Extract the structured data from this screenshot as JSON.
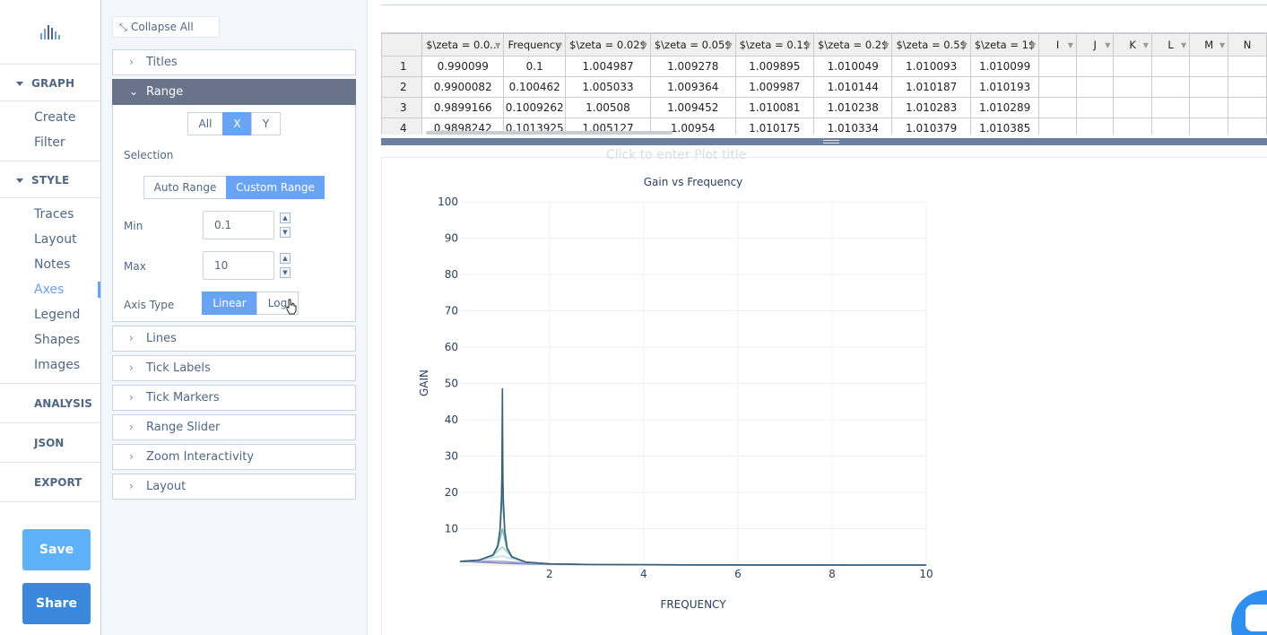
{
  "nav": {
    "groups": [
      {
        "label": "GRAPH",
        "items": [
          "Create",
          "Filter"
        ]
      },
      {
        "label": "STYLE",
        "items": [
          "Traces",
          "Layout",
          "Notes",
          "Axes",
          "Legend",
          "Shapes",
          "Images"
        ]
      }
    ],
    "active_item": "Axes",
    "top_items": [
      "ANALYSIS",
      "JSON",
      "EXPORT"
    ],
    "save_label": "Save",
    "share_label": "Share"
  },
  "panel": {
    "collapse_all": "Collapse All",
    "sections": {
      "titles": "Titles",
      "range": "Range",
      "lines": "Lines",
      "tick_labels": "Tick Labels",
      "tick_markers": "Tick Markers",
      "range_slider": "Range Slider",
      "zoom": "Zoom Interactivity",
      "layout": "Layout"
    },
    "axis_selector": {
      "options": [
        "All",
        "X",
        "Y"
      ],
      "selected": "X"
    },
    "selection_label": "Selection",
    "range_mode": {
      "options": [
        "Auto Range",
        "Custom Range"
      ],
      "selected": "Custom Range"
    },
    "min_label": "Min",
    "min_value": "0.1",
    "max_label": "Max",
    "max_value": "10",
    "axis_type_label": "Axis Type",
    "axis_type": {
      "options": [
        "Linear",
        "Log"
      ],
      "selected": "Linear"
    }
  },
  "grid": {
    "columns": [
      "$\\zeta = 0.0...",
      "Frequency",
      "$\\zeta = 0.02$",
      "$\\zeta = 0.05$",
      "$\\zeta = 0.1$",
      "$\\zeta = 0.2$",
      "$\\zeta = 0.5$",
      "$\\zeta = 1$",
      "I",
      "J",
      "K",
      "L",
      "M",
      "N"
    ],
    "rows": [
      [
        "1",
        "0.990099",
        "0.1",
        "1.004987",
        "1.009278",
        "1.009895",
        "1.010049",
        "1.010093",
        "1.010099"
      ],
      [
        "2",
        "0.9900082",
        "0.100462",
        "1.005033",
        "1.009364",
        "1.009987",
        "1.010144",
        "1.010187",
        "1.010193"
      ],
      [
        "3",
        "0.9899166",
        "0.1009262",
        "1.00508",
        "1.009452",
        "1.010081",
        "1.010238",
        "1.010283",
        "1.010289"
      ],
      [
        "4",
        "0.9898242",
        "0.1013925",
        "1.005127",
        "1.00954",
        "1.010175",
        "1.010334",
        "1.010379",
        "1.010385"
      ]
    ]
  },
  "plot": {
    "ghost_title": "Click to enter Plot title"
  },
  "chart_data": {
    "type": "line",
    "title": "Gain vs Frequency",
    "xlabel": "FREQUENCY",
    "ylabel": "GAIN",
    "xlim": [
      0.1,
      10
    ],
    "ylim": [
      0,
      100
    ],
    "xticks": [
      2,
      4,
      6,
      8,
      10
    ],
    "yticks": [
      10,
      20,
      30,
      40,
      50,
      60,
      70,
      80,
      90,
      100
    ],
    "grid": true,
    "series": [
      {
        "zeta": 0.01,
        "color": "#3c5f7a",
        "x": [
          0.1,
          0.5,
          0.8,
          0.9,
          0.95,
          0.98,
          0.99,
          1.0,
          1.01,
          1.02,
          1.05,
          1.1,
          1.2,
          1.5,
          2,
          3,
          5,
          7,
          10
        ],
        "y": [
          1.01,
          1.33,
          2.77,
          5.26,
          9.6,
          18.2,
          24.5,
          48.5,
          24.5,
          18.2,
          9.6,
          4.76,
          2.27,
          0.8,
          0.33,
          0.125,
          0.042,
          0.021,
          0.01
        ]
      },
      {
        "zeta": 0.02,
        "color": "#5aa89a",
        "x": [
          0.1,
          0.5,
          0.8,
          0.9,
          0.95,
          0.98,
          1.0,
          1.02,
          1.05,
          1.1,
          1.2,
          1.5,
          2,
          3,
          5,
          10
        ],
        "y": [
          1.005,
          1.33,
          2.77,
          5.2,
          9.2,
          15.5,
          25,
          15.5,
          9.2,
          4.7,
          2.27,
          0.8,
          0.33,
          0.125,
          0.042,
          0.01
        ]
      },
      {
        "zeta": 0.05,
        "color": "#7cc0b5",
        "x": [
          0.1,
          0.5,
          0.8,
          0.9,
          0.95,
          1.0,
          1.05,
          1.1,
          1.2,
          1.5,
          2,
          3,
          5,
          10
        ],
        "y": [
          1.009,
          1.33,
          2.7,
          4.8,
          7.1,
          10,
          7.1,
          4.4,
          2.2,
          0.8,
          0.33,
          0.125,
          0.042,
          0.01
        ]
      },
      {
        "zeta": 0.1,
        "color": "#a6d4c9",
        "x": [
          0.1,
          0.5,
          0.8,
          0.9,
          1.0,
          1.1,
          1.2,
          1.5,
          2,
          3,
          5,
          10
        ],
        "y": [
          1.01,
          1.32,
          2.5,
          3.8,
          5,
          3.6,
          2.1,
          0.79,
          0.33,
          0.125,
          0.042,
          0.01
        ]
      },
      {
        "zeta": 0.2,
        "color": "#c7dcef",
        "x": [
          0.1,
          0.5,
          0.8,
          1.0,
          1.2,
          1.5,
          2,
          3,
          5,
          10
        ],
        "y": [
          1.01,
          1.29,
          2.0,
          2.5,
          1.7,
          0.75,
          0.32,
          0.124,
          0.042,
          0.01
        ]
      },
      {
        "zeta": 0.5,
        "color": "#9aa6d6",
        "x": [
          0.1,
          0.5,
          0.8,
          1.0,
          1.2,
          1.5,
          2,
          3,
          5,
          10
        ],
        "y": [
          1.01,
          1.11,
          1.05,
          1.0,
          0.82,
          0.55,
          0.28,
          0.12,
          0.041,
          0.01
        ]
      },
      {
        "zeta": 1,
        "color": "#8a7fc7",
        "x": [
          0.1,
          0.5,
          0.8,
          1.0,
          1.5,
          2,
          3,
          5,
          10
        ],
        "y": [
          0.99,
          0.8,
          0.61,
          0.5,
          0.31,
          0.2,
          0.1,
          0.038,
          0.0099
        ]
      }
    ]
  }
}
